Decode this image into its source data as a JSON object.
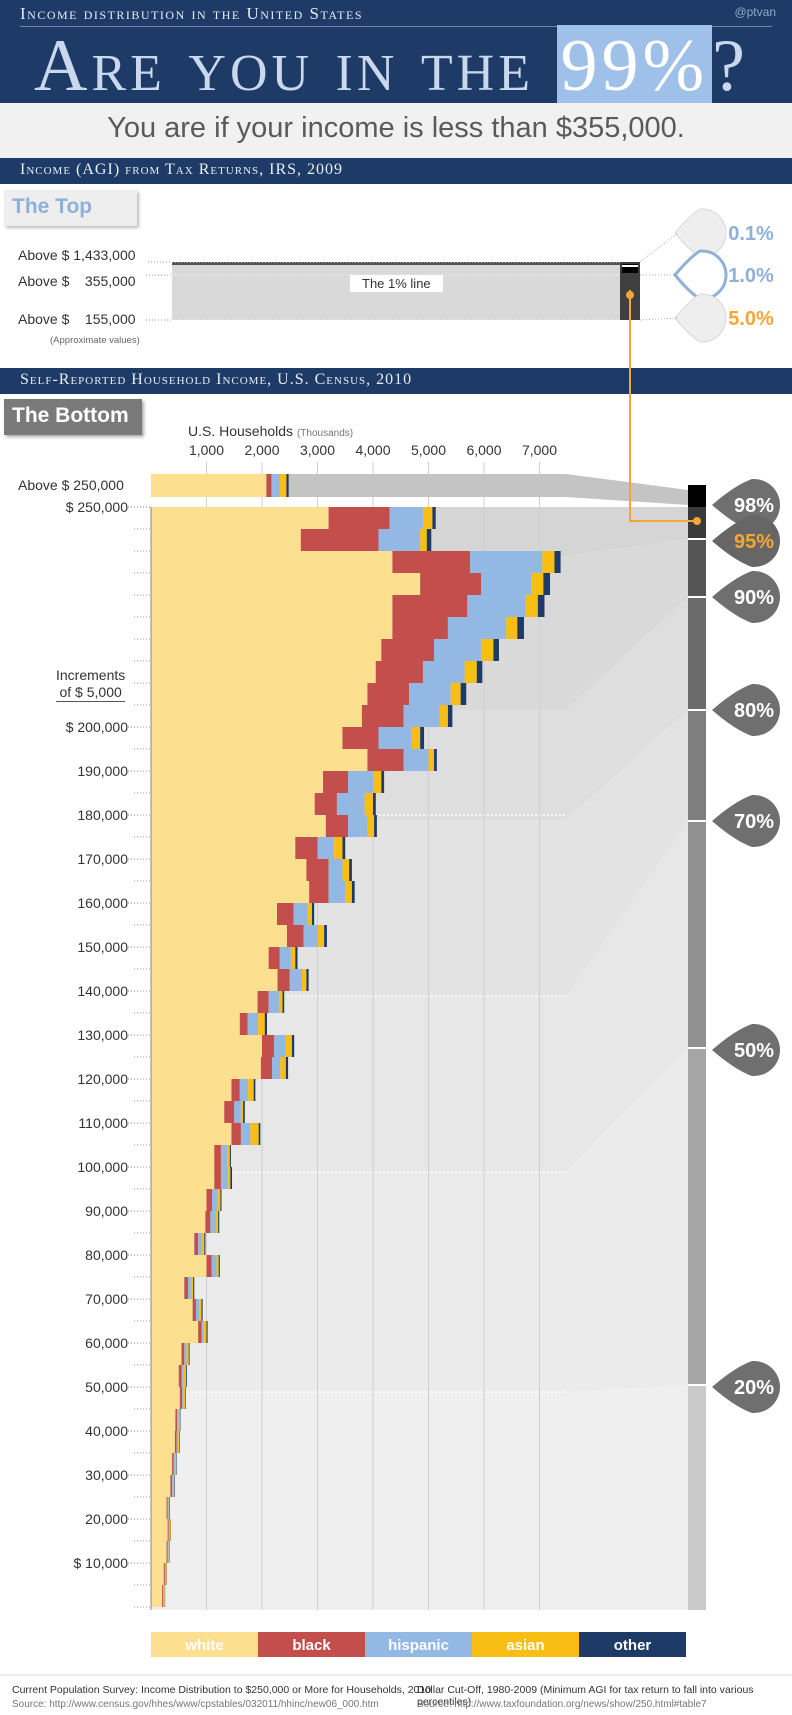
{
  "header": {
    "subtitle": "Income distribution in the United States",
    "handle": "@ptvan",
    "title_pre": "Are you in the ",
    "title_highlight": "99%",
    "title_post": "?"
  },
  "lead": "You are if your income is less than $355,000.",
  "top_section": {
    "heading": "Income (AGI) from Tax Returns, IRS, 2009",
    "badge": "The Top",
    "rows": [
      {
        "label": "Above $ 1,433,000",
        "pct": "0.1%"
      },
      {
        "label": "Above $    355,000",
        "pct": "1.0%"
      },
      {
        "label": "Above $    155,000",
        "pct": "5.0%"
      }
    ],
    "note": "(Approximate values)",
    "line_label": "The 1% line"
  },
  "bottom_section": {
    "heading": "Self-Reported Household Income, U.S. Census, 2010",
    "badge": "The Bottom",
    "axis_title": "U.S. Households",
    "axis_unit": "(Thousands)",
    "increments_label": [
      "Increments",
      "of $ 5,000"
    ]
  },
  "colors": {
    "white": "#fde08f",
    "black": "#c44e4c",
    "hispanic": "#93b8e3",
    "asian": "#f8be13",
    "other": "#1d3b66",
    "navy": "#1d3b66",
    "highlight_blue": "#9fc0e8",
    "orange": "#f4a637"
  },
  "chart_data": {
    "type": "bar",
    "stacked": true,
    "orientation": "horizontal",
    "xlabel": "U.S. Households (Thousands)",
    "x_ticks": [
      "1,000",
      "2,000",
      "3,000",
      "4,000",
      "5,000",
      "6,000",
      "7,000"
    ],
    "xlim": [
      0,
      7600
    ],
    "y_ticks": [
      "$ 250,000",
      "$ 200,000",
      "190,000",
      "180,000",
      "170,000",
      "160,000",
      "150,000",
      "140,000",
      "130,000",
      "120,000",
      "110,000",
      "100,000",
      "90,000",
      "80,000",
      "70,000",
      "60,000",
      "50,000",
      "40,000",
      "30,000",
      "20,000",
      "$ 10,000"
    ],
    "series_names": [
      "white",
      "black",
      "hispanic",
      "asian",
      "other"
    ],
    "above_250k": {
      "label": "Above $ 250,000",
      "values": [
        2080,
        90,
        150,
        120,
        40
      ]
    },
    "rows": [
      [
        3200,
        1100,
        600,
        170,
        60
      ],
      [
        2700,
        1400,
        750,
        120,
        80
      ],
      [
        4350,
        1400,
        1300,
        220,
        110
      ],
      [
        4850,
        1100,
        900,
        220,
        120
      ],
      [
        4350,
        1350,
        1050,
        220,
        120
      ],
      [
        4350,
        1000,
        1050,
        200,
        120
      ],
      [
        4150,
        950,
        850,
        220,
        100
      ],
      [
        4050,
        850,
        750,
        220,
        100
      ],
      [
        3900,
        750,
        750,
        180,
        100
      ],
      [
        3800,
        750,
        650,
        150,
        80
      ],
      [
        3450,
        650,
        600,
        150,
        70
      ],
      [
        3900,
        650,
        450,
        100,
        50
      ],
      [
        3100,
        450,
        450,
        150,
        50
      ],
      [
        2950,
        400,
        500,
        150,
        50
      ],
      [
        3150,
        400,
        350,
        120,
        50
      ],
      [
        2600,
        400,
        300,
        150,
        50
      ],
      [
        2800,
        400,
        250,
        120,
        50
      ],
      [
        2850,
        350,
        300,
        120,
        50
      ],
      [
        2270,
        300,
        250,
        80,
        40
      ],
      [
        2450,
        300,
        250,
        120,
        50
      ],
      [
        2120,
        200,
        200,
        80,
        40
      ],
      [
        2280,
        220,
        220,
        80,
        40
      ],
      [
        1920,
        200,
        200,
        50,
        30
      ],
      [
        1600,
        140,
        190,
        120,
        40
      ],
      [
        2000,
        220,
        200,
        120,
        40
      ],
      [
        1980,
        200,
        150,
        100,
        40
      ],
      [
        1450,
        150,
        150,
        100,
        30
      ],
      [
        1320,
        180,
        120,
        40,
        30
      ],
      [
        1450,
        170,
        170,
        150,
        30
      ],
      [
        1140,
        120,
        110,
        50,
        20
      ],
      [
        1140,
        120,
        130,
        40,
        30
      ],
      [
        1000,
        100,
        100,
        50,
        20
      ],
      [
        980,
        90,
        100,
        40,
        20
      ],
      [
        780,
        70,
        60,
        50,
        20
      ],
      [
        1000,
        90,
        90,
        40,
        20
      ],
      [
        600,
        70,
        50,
        40,
        20
      ],
      [
        750,
        60,
        60,
        40,
        20
      ],
      [
        850,
        60,
        40,
        50,
        20
      ],
      [
        550,
        50,
        40,
        40,
        15
      ],
      [
        500,
        50,
        40,
        40,
        15
      ],
      [
        520,
        40,
        30,
        30,
        10
      ],
      [
        440,
        30,
        30,
        20,
        10
      ],
      [
        430,
        30,
        30,
        20,
        10
      ],
      [
        380,
        30,
        20,
        20,
        10
      ],
      [
        350,
        30,
        20,
        20,
        10
      ],
      [
        280,
        20,
        20,
        10,
        10
      ],
      [
        300,
        20,
        20,
        15,
        5
      ],
      [
        280,
        20,
        20,
        15,
        5
      ],
      [
        230,
        20,
        20,
        10,
        5
      ],
      [
        200,
        20,
        20,
        10,
        5
      ]
    ],
    "percentiles": [
      "98%",
      "95%",
      "90%",
      "80%",
      "70%",
      "50%",
      "20%"
    ],
    "legend": [
      "white",
      "black",
      "hispanic",
      "asian",
      "other"
    ]
  },
  "footer": {
    "left_title": "Current Population Survey: Income Distribution to $250,000 or More for Households, 2010",
    "left_source": "Source: http://www.census.gov/hhes/www/cpstables/032011/hhinc/new06_000.htm",
    "right_title": "Dollar Cut-Off, 1980-2009 (Minimum AGI for tax return to fall into various percentiles)",
    "right_source": "Source: http://www.taxfoundation.org/news/show/250.html#table7"
  }
}
